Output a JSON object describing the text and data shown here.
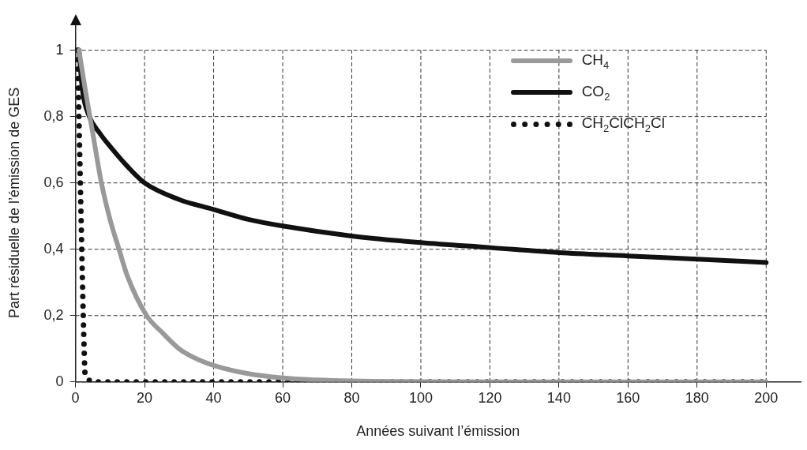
{
  "chart_data": {
    "type": "line",
    "xlabel": "Années suivant l’émission",
    "ylabel": "Part résiduelle de l’émission de GES",
    "xlim": [
      0,
      210
    ],
    "xticks": [
      0,
      20,
      40,
      60,
      80,
      100,
      120,
      140,
      160,
      180,
      200
    ],
    "ylim": [
      0,
      1.08
    ],
    "yticks": [
      {
        "value": 0,
        "label": "0"
      },
      {
        "value": 0.2,
        "label": "0,2"
      },
      {
        "value": 0.4,
        "label": "0,4"
      },
      {
        "value": 0.6,
        "label": "0,6"
      },
      {
        "value": 0.8,
        "label": "0,8"
      },
      {
        "value": 1,
        "label": "1"
      }
    ],
    "grid": true,
    "legend": "top right",
    "marker": "none",
    "series": [
      {
        "name": "CH$_{4}$",
        "color": "#999999",
        "line_style": "solid",
        "x": [
          1,
          3,
          5,
          7.5,
          10,
          12.6,
          15,
          20.6,
          25,
          30,
          35,
          40,
          50,
          60,
          70,
          80,
          100,
          140,
          200
        ],
        "values": [
          1,
          0.87,
          0.75,
          0.6,
          0.49,
          0.4,
          0.32,
          0.2,
          0.15,
          0.1,
          0.07,
          0.05,
          0.025,
          0.012,
          0.006,
          0.003,
          0.001,
          0,
          0
        ]
      },
      {
        "name": "CO$_{2}$",
        "color": "#111111",
        "line_style": "solid",
        "x": [
          1,
          2,
          4,
          7,
          10,
          15,
          20,
          30,
          40,
          50,
          60,
          80,
          100,
          120,
          140,
          160,
          180,
          200
        ],
        "values": [
          1,
          0.88,
          0.8,
          0.75,
          0.71,
          0.65,
          0.6,
          0.55,
          0.52,
          0.49,
          0.47,
          0.44,
          0.42,
          0.405,
          0.39,
          0.38,
          0.37,
          0.36
        ]
      },
      {
        "name": "CH$_{2}$ClCH$_{2}$Cl",
        "color": "#111111",
        "line_style": "dotted",
        "x": [
          0.6,
          1.5,
          2.5,
          2.8,
          6,
          200
        ],
        "values": [
          1,
          0.55,
          0.1,
          0.02,
          0,
          0
        ]
      }
    ]
  }
}
